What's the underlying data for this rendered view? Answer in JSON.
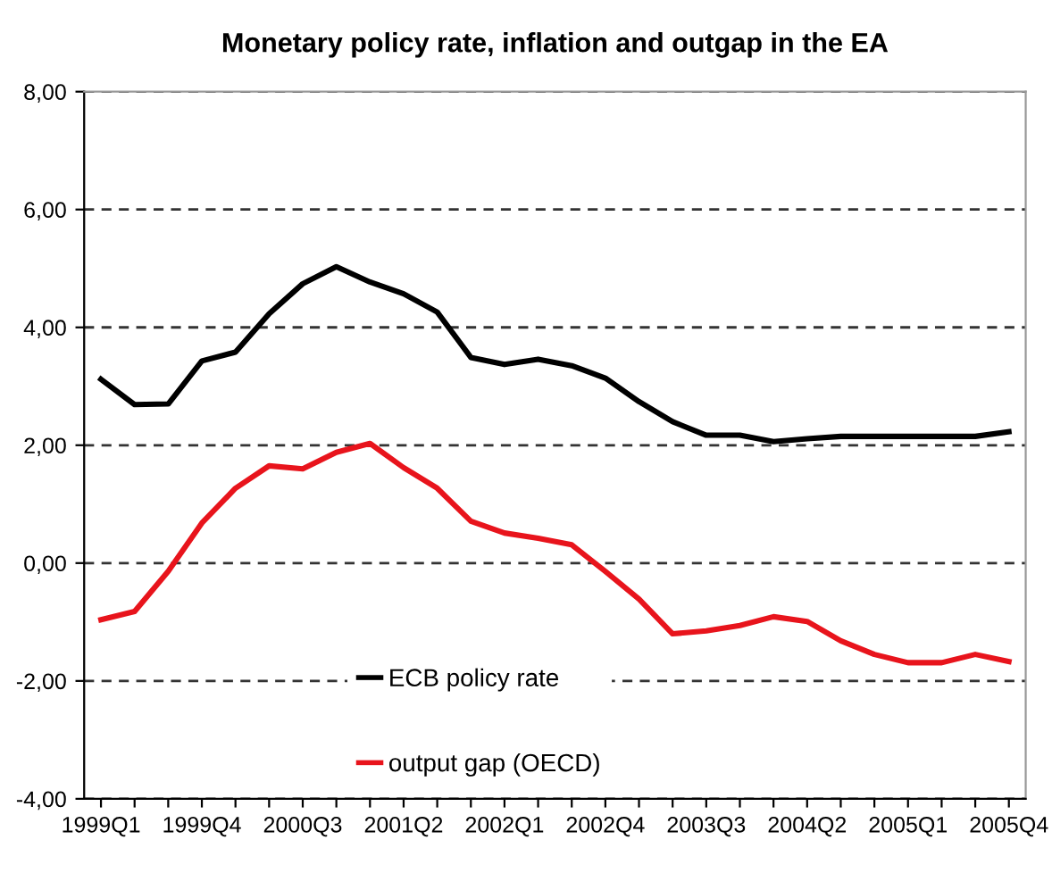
{
  "chart_data": {
    "type": "line",
    "title": "Monetary policy rate, inflation and outgap in the EA",
    "categories": [
      "1999Q1",
      null,
      null,
      "1999Q4",
      null,
      null,
      "2000Q3",
      null,
      null,
      "2001Q2",
      null,
      null,
      "2002Q1",
      null,
      null,
      "2002Q4",
      null,
      null,
      "2003Q3",
      null,
      null,
      "2004Q2",
      null,
      null,
      "2005Q1",
      null,
      null,
      "2005Q4"
    ],
    "series": [
      {
        "name": "ECB policy rate",
        "color": "#000000",
        "values": [
          3.12,
          2.69,
          2.7,
          3.43,
          3.58,
          4.23,
          4.74,
          5.03,
          4.77,
          4.57,
          4.26,
          3.49,
          3.37,
          3.46,
          3.35,
          3.14,
          2.74,
          2.4,
          2.17,
          2.17,
          2.06,
          2.11,
          2.15,
          2.15,
          2.15,
          2.15,
          2.15,
          2.23
        ]
      },
      {
        "name": "output gap (OECD)",
        "color": "#e8141c",
        "values": [
          -0.96,
          -0.82,
          -0.14,
          0.68,
          1.27,
          1.65,
          1.6,
          1.88,
          2.03,
          1.62,
          1.27,
          0.71,
          0.51,
          0.42,
          0.31,
          -0.14,
          -0.61,
          -1.2,
          -1.15,
          -1.06,
          -0.91,
          -0.99,
          -1.32,
          -1.55,
          -1.69,
          -1.69,
          -1.55,
          -1.67
        ]
      }
    ],
    "ylim": [
      -4,
      8
    ],
    "yticks": [
      {
        "value": -4,
        "label": "-4,00"
      },
      {
        "value": -2,
        "label": "-2,00"
      },
      {
        "value": 0,
        "label": "0,00"
      },
      {
        "value": 2,
        "label": "2,00"
      },
      {
        "value": 4,
        "label": "4,00"
      },
      {
        "value": 6,
        "label": "6,00"
      },
      {
        "value": 8,
        "label": "8,00"
      }
    ],
    "grid": "y",
    "legend": "bottom",
    "line_style": "solid",
    "marker": "none"
  }
}
